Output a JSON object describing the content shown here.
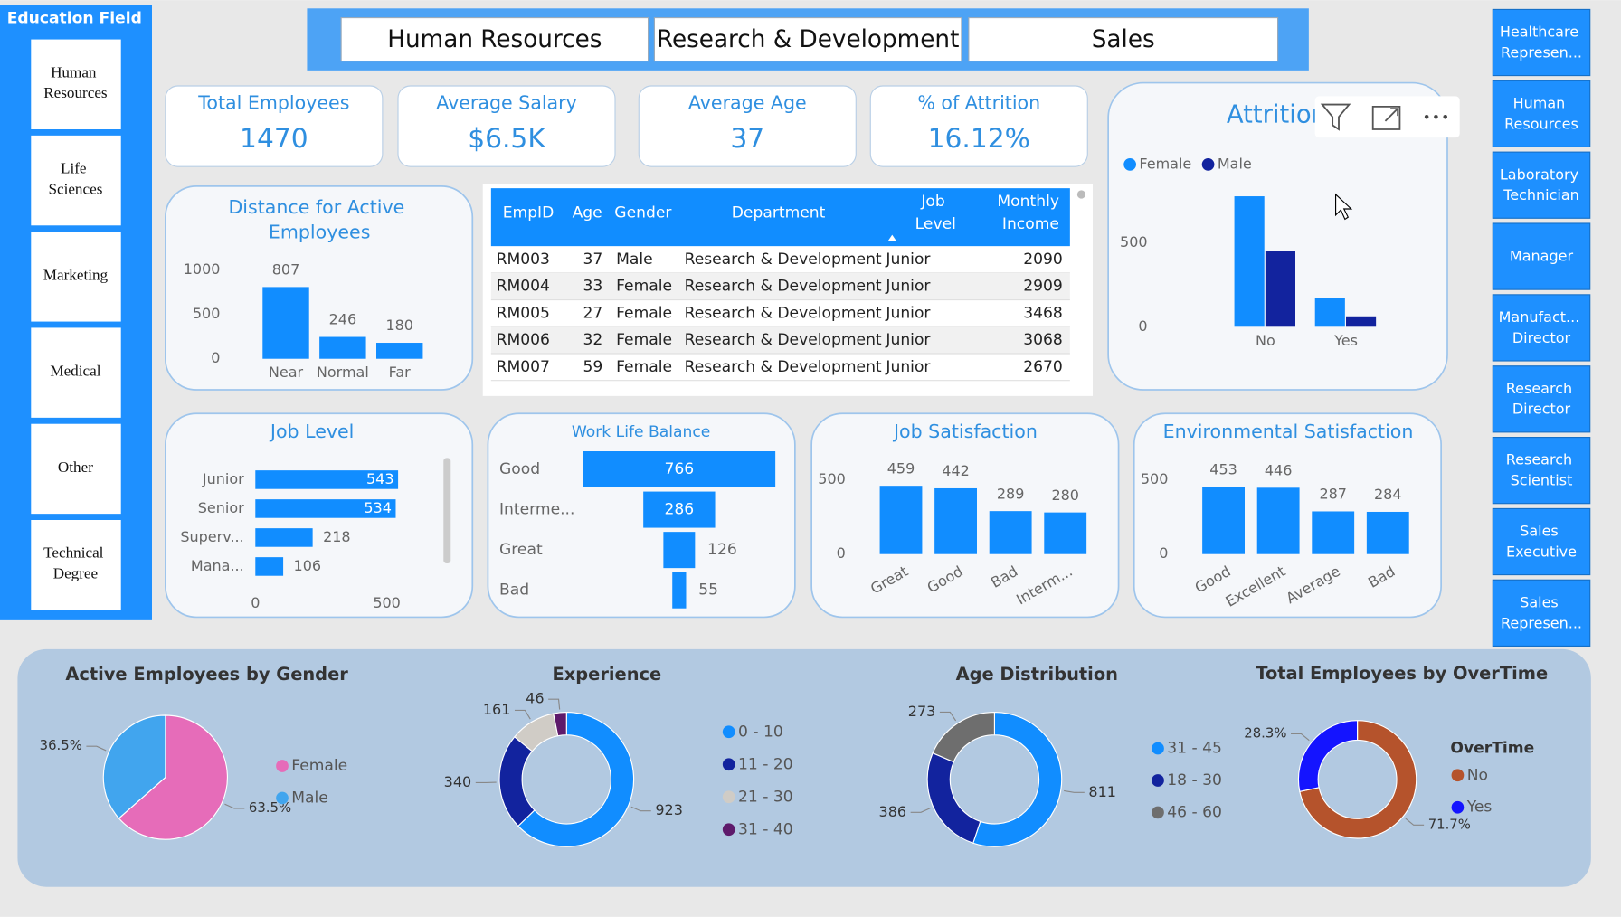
{
  "education_field": {
    "title": "Education Field",
    "items": [
      "Human Resources",
      "Life Sciences",
      "Marketing",
      "Medical",
      "Other",
      "Technical Degree"
    ]
  },
  "departments": [
    "Human Resources",
    "Research & Development",
    "Sales"
  ],
  "job_roles": [
    "Healthcare Represen...",
    "Human Resources",
    "Laboratory Technician",
    "Manager",
    "Manufact... Director",
    "Research Director",
    "Research Scientist",
    "Sales Executive",
    "Sales Represen..."
  ],
  "kpis": [
    {
      "label": "Total Employees",
      "value": 1470
    },
    {
      "label": "Average Salary",
      "value": "$6.5K"
    },
    {
      "label": "Average Age",
      "value": 37
    },
    {
      "label": "% of Attrition",
      "value": "16.12%"
    }
  ],
  "table": {
    "columns": [
      "EmpID",
      "Age",
      "Gender",
      "Department",
      "Job Level",
      "Monthly Income"
    ],
    "rows": [
      [
        "RM003",
        37,
        "Male",
        "Research & Development",
        "Junior",
        2090
      ],
      [
        "RM004",
        33,
        "Female",
        "Research & Development",
        "Junior",
        2909
      ],
      [
        "RM005",
        27,
        "Female",
        "Research & Development",
        "Junior",
        3468
      ],
      [
        "RM006",
        32,
        "Female",
        "Research & Development",
        "Junior",
        3068
      ],
      [
        "RM007",
        59,
        "Female",
        "Research & Development",
        "Junior",
        2670
      ]
    ]
  },
  "chart_data": [
    {
      "type": "bar",
      "title": "Distance for Active Employees",
      "categories": [
        "Near",
        "Normal",
        "Far"
      ],
      "values": [
        807,
        246,
        180
      ],
      "color": "#118DFF",
      "ylim": [
        0,
        1000
      ],
      "yticks": [
        0,
        500,
        1000
      ]
    },
    {
      "type": "grouped_bar",
      "title": "Attrition",
      "categories": [
        "No",
        "Yes"
      ],
      "series": [
        {
          "name": "Female",
          "color": "#118DFF",
          "values": [
            778,
            173
          ]
        },
        {
          "name": "Male",
          "color": "#12239E",
          "values": [
            450,
            62
          ]
        }
      ],
      "ylim": [
        0,
        900
      ],
      "yticks": [
        0,
        500
      ],
      "legend": "top-left"
    },
    {
      "type": "hbar",
      "title": "Job Level",
      "categories": [
        "Junior",
        "Senior",
        "Superv...",
        "Mana..."
      ],
      "values": [
        543,
        534,
        218,
        106
      ],
      "color": "#118DFF",
      "xlim": [
        0,
        700
      ],
      "xticks": [
        0,
        500
      ]
    },
    {
      "type": "funnel",
      "title": "Work Life Balance",
      "categories": [
        "Good",
        "Interme...",
        "Great",
        "Bad"
      ],
      "values": [
        766,
        286,
        126,
        55
      ],
      "color": "#118DFF"
    },
    {
      "type": "bar",
      "title": "Job Satisfaction",
      "categories": [
        "Great",
        "Good",
        "Bad",
        "Interm..."
      ],
      "values": [
        459,
        442,
        289,
        280
      ],
      "color": "#118DFF",
      "ylim": [
        0,
        600
      ],
      "yticks": [
        0,
        500
      ],
      "x_label_rotation": -30
    },
    {
      "type": "bar",
      "title": "Environmental Satisfaction",
      "categories": [
        "Good",
        "Excellent",
        "Average",
        "Bad"
      ],
      "values": [
        453,
        446,
        287,
        284
      ],
      "color": "#118DFF",
      "ylim": [
        0,
        600
      ],
      "yticks": [
        0,
        500
      ],
      "x_label_rotation": -30
    },
    {
      "type": "pie",
      "title": "Active Employees by Gender",
      "categories": [
        "Female",
        "Male"
      ],
      "values": [
        63.5,
        36.5
      ],
      "value_labels": [
        "63.5%",
        "36.5%"
      ],
      "colors": [
        "#E66CB9",
        "#41A5EE"
      ],
      "legend": "right"
    },
    {
      "type": "donut",
      "title": "Experience",
      "categories": [
        "0 - 10",
        "11 - 20",
        "21 - 30",
        "31 - 40"
      ],
      "values": [
        923,
        340,
        161,
        46
      ],
      "colors": [
        "#118DFF",
        "#12239E",
        "#D0CCC6",
        "#5E1A6B"
      ],
      "legend": "right"
    },
    {
      "type": "donut",
      "title": "Age Distribution",
      "categories": [
        "31 - 45",
        "18 - 30",
        "46 - 60"
      ],
      "values": [
        811,
        386,
        273
      ],
      "colors": [
        "#118DFF",
        "#12239E",
        "#6E6E6E"
      ],
      "legend": "right"
    },
    {
      "type": "donut",
      "title": "Total Employees by OverTime",
      "legend_title": "OverTime",
      "categories": [
        "No",
        "Yes"
      ],
      "values": [
        71.7,
        28.3
      ],
      "value_labels": [
        "71.7%",
        "28.3%"
      ],
      "colors": [
        "#B5532C",
        "#1414FF"
      ],
      "legend": "right"
    }
  ]
}
